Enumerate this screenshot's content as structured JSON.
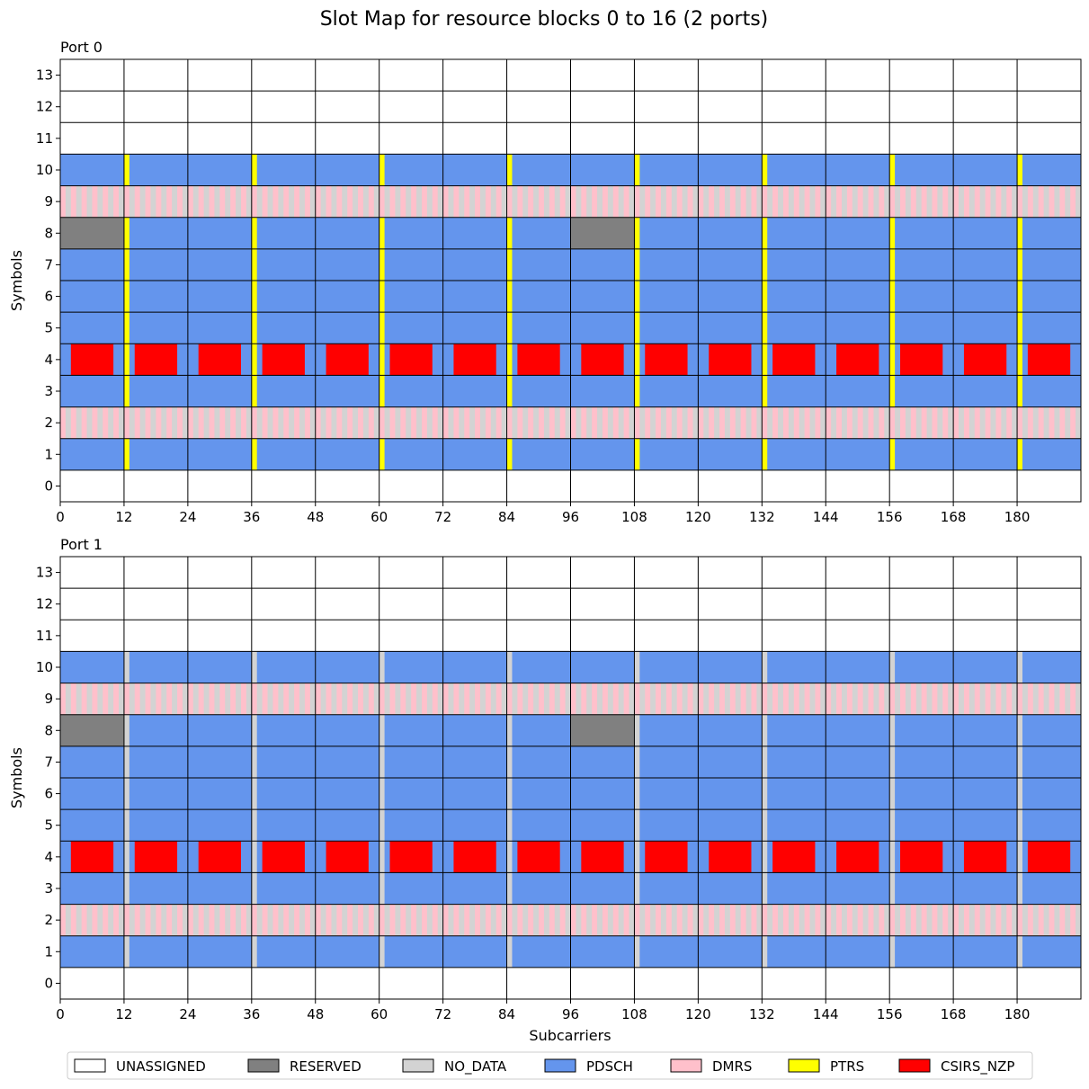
{
  "chart_data": {
    "type": "heatmap",
    "title": "Slot Map for resource blocks 0 to 16 (2 ports)",
    "xlabel": "Subcarriers",
    "ylabel": "Symbols",
    "xlim": [
      0,
      192
    ],
    "ylim": [
      0,
      14
    ],
    "xticks": [
      "0",
      "12",
      "24",
      "36",
      "48",
      "60",
      "72",
      "84",
      "96",
      "108",
      "120",
      "132",
      "144",
      "156",
      "168",
      "180"
    ],
    "yticks": [
      "0",
      "1",
      "2",
      "3",
      "4",
      "5",
      "6",
      "7",
      "8",
      "9",
      "10",
      "11",
      "12",
      "13"
    ],
    "resource_blocks": 16,
    "subcarriers_per_rb": 12,
    "grid": true,
    "legend_position": "bottom",
    "legend": [
      {
        "name": "UNASSIGNED",
        "color": "#ffffff"
      },
      {
        "name": "RESERVED",
        "color": "#808080"
      },
      {
        "name": "NO_DATA",
        "color": "#d3d3d3"
      },
      {
        "name": "PDSCH",
        "color": "#6495ed"
      },
      {
        "name": "DMRS",
        "color": "#ffc0cb"
      },
      {
        "name": "PTRS",
        "color": "#ffff00"
      },
      {
        "name": "CSIRS_NZP",
        "color": "#ff0000"
      }
    ],
    "ports": [
      {
        "title": "Port 0",
        "allocation": {
          "unassigned_symbols": [
            0,
            11,
            12,
            13
          ],
          "pdsch_symbols": [
            1,
            3,
            4,
            5,
            6,
            7,
            8,
            10
          ],
          "dmrs_symbols": [
            2,
            9
          ],
          "dmrs_pattern": "every other subcarrier",
          "ptrs_subcarrier_offset": 12,
          "ptrs_subcarrier_period": 24,
          "ptrs_symbols": [
            1,
            3,
            4,
            5,
            6,
            7,
            8,
            10
          ],
          "reserved_symbol": 8,
          "reserved_rbs": [
            0,
            8
          ],
          "csirs_symbol": 4,
          "csirs_subcarriers_in_rb": [
            2,
            9
          ]
        }
      },
      {
        "title": "Port 1",
        "allocation": {
          "unassigned_symbols": [
            0,
            11,
            12,
            13
          ],
          "pdsch_symbols": [
            1,
            3,
            4,
            5,
            6,
            7,
            8,
            10
          ],
          "dmrs_symbols": [
            2,
            9
          ],
          "dmrs_pattern": "every other subcarrier",
          "no_data_subcarrier_offset": 12,
          "no_data_subcarrier_period": 24,
          "no_data_symbols": [
            1,
            3,
            4,
            5,
            6,
            7,
            8,
            10
          ],
          "reserved_symbol": 8,
          "reserved_rbs": [
            0,
            8
          ],
          "csirs_symbol": 4,
          "csirs_subcarriers_in_rb": [
            2,
            9
          ]
        }
      }
    ]
  }
}
